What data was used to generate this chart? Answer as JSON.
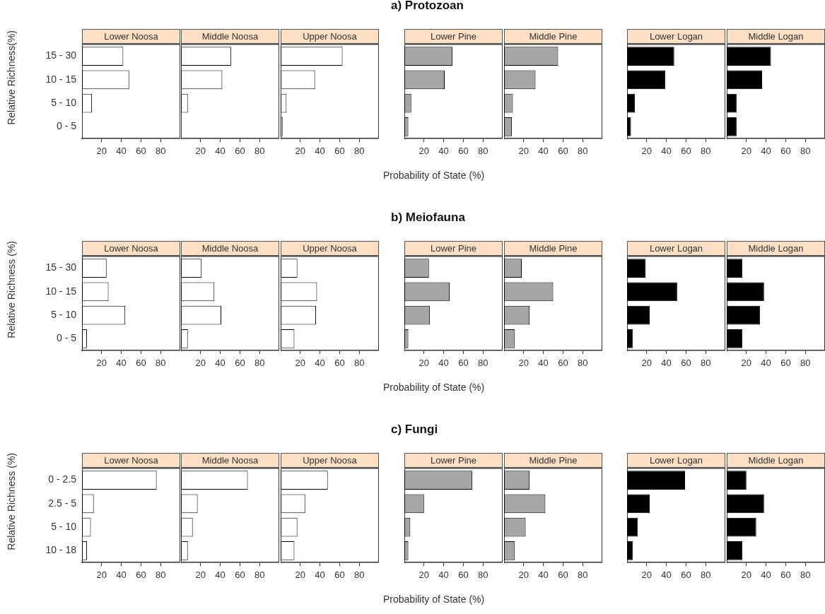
{
  "chart_data": [
    {
      "type": "bar",
      "orientation": "horizontal",
      "title": "Lower Noosa",
      "ylabel": "Relative Richness(%)",
      "categories": [
        "15 - 30",
        "10 - 15",
        "5 - 10",
        "0 - 5"
      ],
      "values": [
        42,
        48,
        10,
        0
      ],
      "color": "#ffffff",
      "xlim": [
        0,
        100
      ],
      "xticks": [
        20,
        40,
        60,
        80
      ]
    },
    {
      "type": "bar",
      "orientation": "horizontal",
      "title": "Middle Noosa",
      "tick_labels": "x",
      "categories": [
        null,
        null,
        null,
        null
      ],
      "values": [
        51,
        42,
        7,
        0
      ],
      "color": "#ffffff",
      "xlim": [
        0,
        100
      ],
      "xticks": [
        20,
        40,
        60,
        80
      ]
    },
    {
      "type": "bar",
      "orientation": "horizontal",
      "title": "Upper Noosa",
      "tick_labels": "x",
      "categories": [
        null,
        null,
        null,
        null
      ],
      "values": [
        63,
        35,
        6,
        2
      ],
      "color": "#ffffff",
      "xlim": [
        0,
        100
      ],
      "xticks": [
        20,
        40,
        60,
        80
      ]
    },
    {
      "type": "bar",
      "orientation": "horizontal",
      "title": "Lower Pine",
      "annotations": [
        "a) Protozoan"
      ],
      "xlabel": "Probability of State (%)",
      "tick_labels": "x",
      "categories": [
        null,
        null,
        null,
        null
      ],
      "values": [
        49,
        41,
        7,
        4
      ],
      "color": "#a6a6a6",
      "xlim": [
        0,
        100
      ],
      "xticks": [
        20,
        40,
        60,
        80
      ]
    },
    {
      "type": "bar",
      "orientation": "horizontal",
      "title": "Middle Pine",
      "tick_labels": "x",
      "categories": [
        null,
        null,
        null,
        null
      ],
      "values": [
        55,
        32,
        9,
        8
      ],
      "color": "#a6a6a6",
      "xlim": [
        0,
        100
      ],
      "xticks": [
        20,
        40,
        60,
        80
      ]
    },
    {
      "type": "bar",
      "orientation": "horizontal",
      "title": "Lower Logan",
      "tick_labels": "x",
      "categories": [
        null,
        null,
        null,
        null
      ],
      "values": [
        48,
        39,
        8,
        4
      ],
      "color": "#000000",
      "xlim": [
        0,
        100
      ],
      "xticks": [
        20,
        40,
        60,
        80
      ]
    },
    {
      "type": "bar",
      "orientation": "horizontal",
      "title": "Middle Logan",
      "tick_labels": "x",
      "categories": [
        null,
        null,
        null,
        null
      ],
      "values": [
        45,
        36,
        10,
        10
      ],
      "color": "#000000",
      "xlim": [
        0,
        100
      ],
      "xticks": [
        20,
        40,
        60,
        80
      ]
    },
    {
      "type": "bar",
      "orientation": "horizontal",
      "title": "Lower Noosa",
      "ylabel": "Relative Richness (%)",
      "categories": [
        "15 - 30",
        "10 - 15",
        "5 - 10",
        "0 - 5"
      ],
      "values": [
        25,
        27,
        44,
        5
      ],
      "color": "#ffffff",
      "xlim": [
        0,
        100
      ],
      "xticks": [
        20,
        40,
        60,
        80
      ]
    },
    {
      "type": "bar",
      "orientation": "horizontal",
      "title": "Middle Noosa",
      "tick_labels": "x",
      "categories": [
        null,
        null,
        null,
        null
      ],
      "values": [
        21,
        34,
        41,
        7
      ],
      "color": "#ffffff",
      "xlim": [
        0,
        100
      ],
      "xticks": [
        20,
        40,
        60,
        80
      ]
    },
    {
      "type": "bar",
      "orientation": "horizontal",
      "title": "Upper Noosa",
      "tick_labels": "x",
      "categories": [
        null,
        null,
        null,
        null
      ],
      "values": [
        17,
        37,
        36,
        14
      ],
      "color": "#ffffff",
      "xlim": [
        0,
        100
      ],
      "xticks": [
        20,
        40,
        60,
        80
      ]
    },
    {
      "type": "bar",
      "orientation": "horizontal",
      "title": "Lower Pine",
      "annotations": [
        "b) Meiofauna"
      ],
      "xlabel": "Probability of State (%)",
      "tick_labels": "x",
      "categories": [
        null,
        null,
        null,
        null
      ],
      "values": [
        25,
        46,
        26,
        4
      ],
      "color": "#a6a6a6",
      "xlim": [
        0,
        100
      ],
      "xticks": [
        20,
        40,
        60,
        80
      ]
    },
    {
      "type": "bar",
      "orientation": "horizontal",
      "title": "Middle Pine",
      "tick_labels": "x",
      "categories": [
        null,
        null,
        null,
        null
      ],
      "values": [
        18,
        50,
        26,
        11
      ],
      "color": "#a6a6a6",
      "xlim": [
        0,
        100
      ],
      "xticks": [
        20,
        40,
        60,
        80
      ]
    },
    {
      "type": "bar",
      "orientation": "horizontal",
      "title": "Lower Logan",
      "tick_labels": "x",
      "categories": [
        null,
        null,
        null,
        null
      ],
      "values": [
        19,
        51,
        23,
        6
      ],
      "color": "#000000",
      "xlim": [
        0,
        100
      ],
      "xticks": [
        20,
        40,
        60,
        80
      ]
    },
    {
      "type": "bar",
      "orientation": "horizontal",
      "title": "Middle Logan",
      "tick_labels": "x",
      "categories": [
        null,
        null,
        null,
        null
      ],
      "values": [
        16,
        38,
        34,
        16
      ],
      "color": "#000000",
      "xlim": [
        0,
        100
      ],
      "xticks": [
        20,
        40,
        60,
        80
      ]
    },
    {
      "type": "bar",
      "orientation": "horizontal",
      "title": "Lower Noosa",
      "ylabel": "Relative Richness (%)",
      "categories": [
        "0 - 2.5",
        "2.5 - 5",
        "5 - 10",
        "10 - 18"
      ],
      "values": [
        76,
        12,
        9,
        5
      ],
      "color": "#ffffff",
      "xlim": [
        0,
        100
      ],
      "xticks": [
        20,
        40,
        60,
        80
      ]
    },
    {
      "type": "bar",
      "orientation": "horizontal",
      "title": "Middle Noosa",
      "tick_labels": "x",
      "categories": [
        null,
        null,
        null,
        null
      ],
      "values": [
        68,
        17,
        12,
        7
      ],
      "color": "#ffffff",
      "xlim": [
        0,
        100
      ],
      "xticks": [
        20,
        40,
        60,
        80
      ]
    },
    {
      "type": "bar",
      "orientation": "horizontal",
      "title": "Upper Noosa",
      "tick_labels": "x",
      "categories": [
        null,
        null,
        null,
        null
      ],
      "values": [
        48,
        25,
        17,
        14
      ],
      "color": "#ffffff",
      "xlim": [
        0,
        100
      ],
      "xticks": [
        20,
        40,
        60,
        80
      ]
    },
    {
      "type": "bar",
      "orientation": "horizontal",
      "title": "Lower Pine",
      "annotations": [
        "c) Fungi"
      ],
      "xlabel": "Probability of State (%)",
      "tick_labels": "x",
      "categories": [
        null,
        null,
        null,
        null
      ],
      "values": [
        69,
        20,
        6,
        4
      ],
      "color": "#a6a6a6",
      "xlim": [
        0,
        100
      ],
      "xticks": [
        20,
        40,
        60,
        80
      ]
    },
    {
      "type": "bar",
      "orientation": "horizontal",
      "title": "Middle Pine",
      "tick_labels": "x",
      "categories": [
        null,
        null,
        null,
        null
      ],
      "values": [
        26,
        42,
        22,
        11
      ],
      "color": "#a6a6a6",
      "xlim": [
        0,
        100
      ],
      "xticks": [
        20,
        40,
        60,
        80
      ]
    },
    {
      "type": "bar",
      "orientation": "horizontal",
      "title": "Lower Logan",
      "tick_labels": "x",
      "categories": [
        null,
        null,
        null,
        null
      ],
      "values": [
        59,
        23,
        11,
        6
      ],
      "color": "#000000",
      "xlim": [
        0,
        100
      ],
      "xticks": [
        20,
        40,
        60,
        80
      ]
    },
    {
      "type": "bar",
      "orientation": "horizontal",
      "title": "Middle Logan",
      "tick_labels": "x",
      "categories": [
        null,
        null,
        null,
        null
      ],
      "values": [
        20,
        38,
        30,
        16
      ],
      "color": "#000000",
      "xlim": [
        0,
        100
      ],
      "xticks": [
        20,
        40,
        60,
        80
      ]
    }
  ]
}
